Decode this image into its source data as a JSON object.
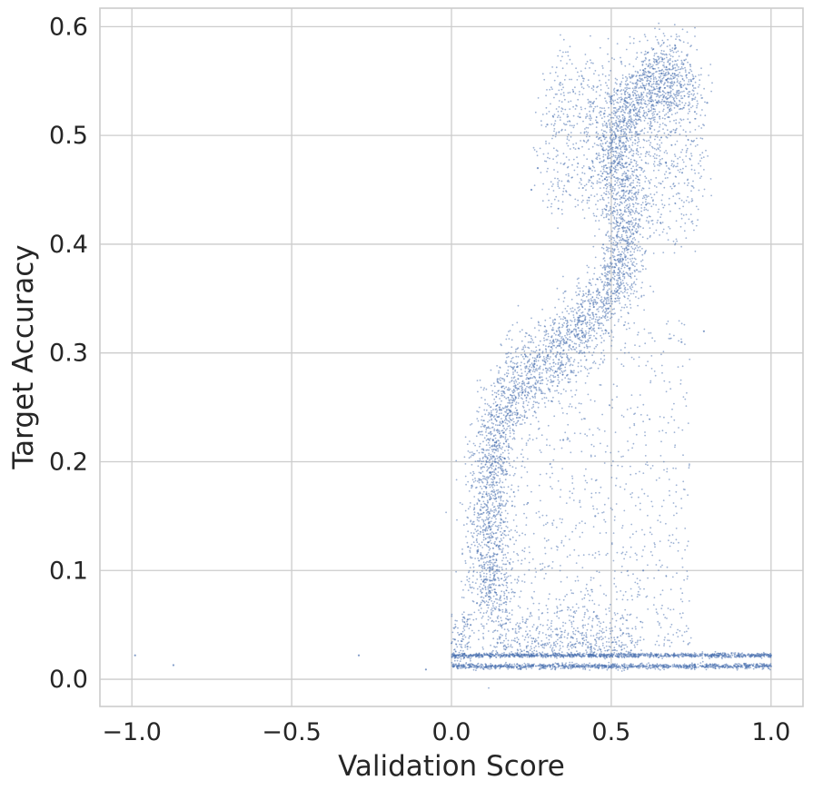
{
  "chart_data": {
    "type": "scatter",
    "title": "",
    "xlabel": "Validation Score",
    "ylabel": "Target Accuracy",
    "xlim": [
      -1.1,
      1.1
    ],
    "ylim": [
      -0.025,
      0.617
    ],
    "x_ticks": [
      -1.0,
      -0.5,
      0.0,
      0.5,
      1.0
    ],
    "x_tick_labels": [
      "−1.0",
      "−0.5",
      "0.0",
      "0.5",
      "1.0"
    ],
    "y_ticks": [
      0.0,
      0.1,
      0.2,
      0.3,
      0.4,
      0.5,
      0.6
    ],
    "y_tick_labels": [
      "0.0",
      "0.1",
      "0.2",
      "0.3",
      "0.4",
      "0.5",
      "0.6"
    ],
    "grid": true,
    "legend": "none",
    "marker_color": "#4c72b0",
    "series": [
      {
        "description_points": "dense cloud; representative sampled points (Validation Score, Target Accuracy)",
        "points": [
          [
            -0.99,
            0.022
          ],
          [
            -0.87,
            0.013
          ],
          [
            -0.29,
            0.022
          ],
          [
            -0.08,
            0.009
          ],
          [
            0.01,
            0.022
          ],
          [
            0.02,
            0.01
          ],
          [
            0.04,
            0.02
          ],
          [
            0.05,
            0.03
          ],
          [
            0.06,
            0.05
          ],
          [
            0.08,
            0.07
          ],
          [
            0.1,
            0.09
          ],
          [
            0.12,
            0.1
          ],
          [
            0.12,
            0.13
          ],
          [
            0.11,
            0.16
          ],
          [
            0.12,
            0.19
          ],
          [
            0.13,
            0.22
          ],
          [
            0.15,
            0.25
          ],
          [
            0.2,
            0.27
          ],
          [
            0.26,
            0.29
          ],
          [
            0.32,
            0.31
          ],
          [
            0.4,
            0.33
          ],
          [
            0.5,
            0.35
          ],
          [
            0.55,
            0.38
          ],
          [
            0.52,
            0.42
          ],
          [
            0.48,
            0.46
          ],
          [
            0.5,
            0.5
          ],
          [
            0.55,
            0.53
          ],
          [
            0.6,
            0.56
          ],
          [
            0.66,
            0.57
          ],
          [
            0.7,
            0.58
          ],
          [
            0.75,
            0.55
          ],
          [
            0.8,
            0.53
          ],
          [
            0.3,
            0.51
          ],
          [
            0.27,
            0.47
          ],
          [
            0.25,
            0.45
          ],
          [
            0.35,
            0.22
          ],
          [
            0.45,
            0.15
          ],
          [
            0.6,
            0.1
          ],
          [
            0.72,
            0.31
          ],
          [
            0.79,
            0.32
          ],
          [
            0.3,
            0.022
          ],
          [
            0.5,
            0.022
          ],
          [
            0.7,
            0.022
          ],
          [
            0.9,
            0.022
          ],
          [
            1.0,
            0.022
          ],
          [
            0.3,
            0.012
          ],
          [
            0.5,
            0.012
          ],
          [
            0.7,
            0.012
          ],
          [
            0.9,
            0.012
          ],
          [
            1.0,
            0.012
          ]
        ]
      }
    ]
  }
}
